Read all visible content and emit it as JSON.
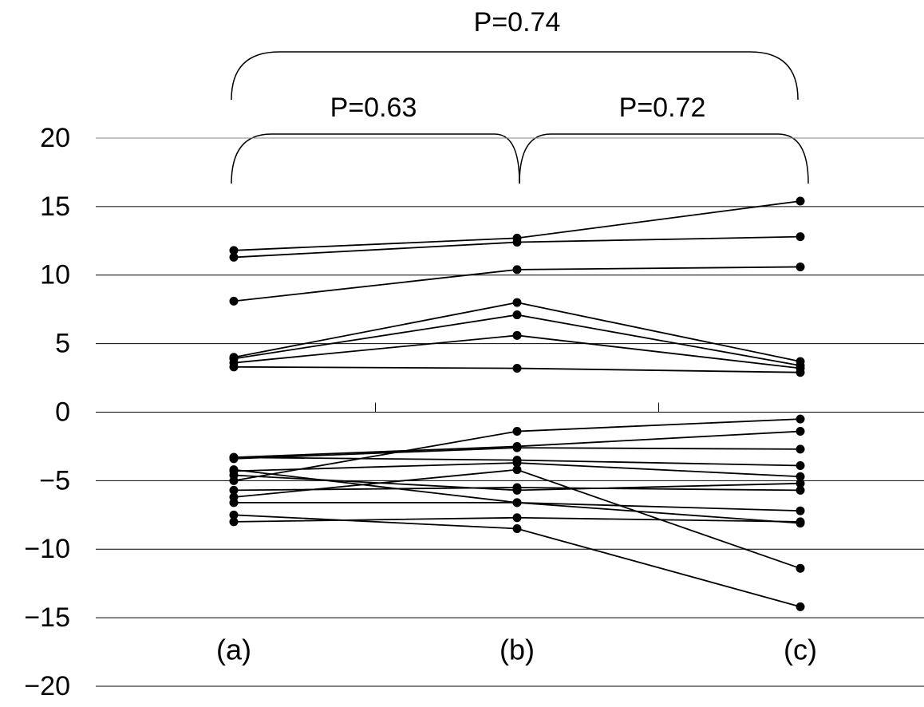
{
  "chart_data": {
    "type": "line",
    "categories": [
      "(a)",
      "(b)",
      "(c)"
    ],
    "series": [
      {
        "color": "#000000",
        "values": [
          11.8,
          12.7,
          15.4
        ]
      },
      {
        "color": "#000000",
        "values": [
          11.3,
          12.4,
          12.8
        ]
      },
      {
        "color": "#000000",
        "values": [
          8.1,
          10.4,
          10.6
        ]
      },
      {
        "color": "#000000",
        "values": [
          4.0,
          8.0,
          3.7
        ]
      },
      {
        "color": "#000000",
        "values": [
          3.9,
          7.1,
          3.4
        ]
      },
      {
        "color": "#000000",
        "values": [
          3.6,
          5.6,
          3.2
        ]
      },
      {
        "color": "#000000",
        "values": [
          3.3,
          3.2,
          2.9
        ]
      },
      {
        "color": "#000000",
        "values": [
          -5.0,
          -1.4,
          -0.5
        ]
      },
      {
        "color": "#000000",
        "values": [
          -3.3,
          -2.5,
          -1.4
        ]
      },
      {
        "color": "#000000",
        "values": [
          -3.4,
          -2.6,
          -2.7
        ]
      },
      {
        "color": "#000000",
        "values": [
          -3.3,
          -3.5,
          -3.9
        ]
      },
      {
        "color": "#000000",
        "values": [
          -4.3,
          -3.7,
          -4.7
        ]
      },
      {
        "color": "#000000",
        "values": [
          -6.2,
          -4.2,
          -11.4
        ]
      },
      {
        "color": "#000000",
        "values": [
          -4.6,
          -5.7,
          -5.2
        ]
      },
      {
        "color": "#000000",
        "values": [
          -5.7,
          -5.5,
          -5.7
        ]
      },
      {
        "color": "#000000",
        "values": [
          -6.6,
          -6.6,
          -7.2
        ]
      },
      {
        "color": "#000000",
        "values": [
          -7.5,
          -8.5,
          -14.2
        ]
      },
      {
        "color": "#000000",
        "values": [
          -8.0,
          -7.7,
          -8.0
        ]
      },
      {
        "color": "#000000",
        "values": [
          -4.2,
          -6.6,
          -8.1
        ]
      }
    ],
    "ylim": [
      -20,
      20
    ],
    "yticks": [
      {
        "value": -20,
        "label": "−20"
      },
      {
        "value": -15,
        "label": "−15"
      },
      {
        "value": -10,
        "label": "−10"
      },
      {
        "value": -5,
        "label": "−5"
      },
      0,
      5,
      10,
      15,
      20
    ],
    "grid": true,
    "annotations": [
      "P=0.74",
      "P=0.63",
      "P=0.72"
    ]
  }
}
